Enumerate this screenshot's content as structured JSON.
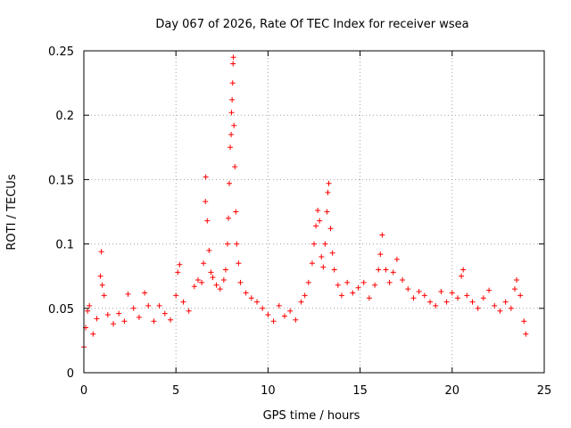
{
  "chart_data": {
    "type": "scatter",
    "title": "Day 067 of 2026, Rate Of TEC Index for receiver wsea",
    "xlabel": "GPS time / hours",
    "ylabel": "ROTI / TECUs",
    "xlim": [
      0,
      25
    ],
    "ylim": [
      0,
      0.25
    ],
    "x_ticks": [
      0,
      5,
      10,
      15,
      20,
      25
    ],
    "x_tick_labels": [
      "0",
      "5",
      "10",
      "15",
      "20",
      "25"
    ],
    "y_ticks": [
      0,
      0.05,
      0.1,
      0.15,
      0.2,
      0.25
    ],
    "y_tick_labels": [
      "0",
      "0.05",
      "0.1",
      "0.15",
      "0.2",
      "0.25"
    ],
    "grid": true,
    "marker": "+",
    "series": [
      {
        "name": "ROTI",
        "color": "#ff0000",
        "points": [
          [
            0.0,
            0.02
          ],
          [
            0.1,
            0.035
          ],
          [
            0.2,
            0.048
          ],
          [
            0.3,
            0.052
          ],
          [
            0.5,
            0.03
          ],
          [
            0.7,
            0.042
          ],
          [
            0.9,
            0.075
          ],
          [
            0.95,
            0.094
          ],
          [
            1.0,
            0.068
          ],
          [
            1.1,
            0.06
          ],
          [
            1.3,
            0.045
          ],
          [
            1.6,
            0.038
          ],
          [
            1.9,
            0.046
          ],
          [
            2.2,
            0.04
          ],
          [
            2.4,
            0.061
          ],
          [
            2.7,
            0.05
          ],
          [
            3.0,
            0.043
          ],
          [
            3.3,
            0.062
          ],
          [
            3.5,
            0.052
          ],
          [
            3.8,
            0.04
          ],
          [
            4.1,
            0.052
          ],
          [
            4.4,
            0.046
          ],
          [
            4.7,
            0.041
          ],
          [
            5.0,
            0.06
          ],
          [
            5.1,
            0.078
          ],
          [
            5.2,
            0.084
          ],
          [
            5.4,
            0.055
          ],
          [
            5.7,
            0.048
          ],
          [
            6.0,
            0.067
          ],
          [
            6.2,
            0.072
          ],
          [
            6.4,
            0.07
          ],
          [
            6.5,
            0.085
          ],
          [
            6.6,
            0.133
          ],
          [
            6.62,
            0.152
          ],
          [
            6.7,
            0.118
          ],
          [
            6.8,
            0.095
          ],
          [
            6.9,
            0.078
          ],
          [
            7.0,
            0.074
          ],
          [
            7.2,
            0.068
          ],
          [
            7.4,
            0.065
          ],
          [
            7.6,
            0.072
          ],
          [
            7.7,
            0.08
          ],
          [
            7.8,
            0.1
          ],
          [
            7.85,
            0.12
          ],
          [
            7.9,
            0.147
          ],
          [
            7.95,
            0.175
          ],
          [
            8.0,
            0.185
          ],
          [
            8.02,
            0.202
          ],
          [
            8.05,
            0.212
          ],
          [
            8.08,
            0.225
          ],
          [
            8.1,
            0.24
          ],
          [
            8.12,
            0.245
          ],
          [
            8.15,
            0.192
          ],
          [
            8.2,
            0.16
          ],
          [
            8.25,
            0.125
          ],
          [
            8.3,
            0.1
          ],
          [
            8.4,
            0.085
          ],
          [
            8.5,
            0.07
          ],
          [
            8.8,
            0.062
          ],
          [
            9.1,
            0.058
          ],
          [
            9.4,
            0.055
          ],
          [
            9.7,
            0.05
          ],
          [
            10.0,
            0.045
          ],
          [
            10.3,
            0.04
          ],
          [
            10.6,
            0.052
          ],
          [
            10.9,
            0.044
          ],
          [
            11.2,
            0.048
          ],
          [
            11.5,
            0.041
          ],
          [
            11.8,
            0.055
          ],
          [
            12.0,
            0.06
          ],
          [
            12.2,
            0.07
          ],
          [
            12.4,
            0.085
          ],
          [
            12.5,
            0.1
          ],
          [
            12.6,
            0.114
          ],
          [
            12.7,
            0.126
          ],
          [
            12.8,
            0.118
          ],
          [
            12.9,
            0.09
          ],
          [
            13.0,
            0.082
          ],
          [
            13.1,
            0.1
          ],
          [
            13.2,
            0.125
          ],
          [
            13.25,
            0.14
          ],
          [
            13.3,
            0.147
          ],
          [
            13.4,
            0.112
          ],
          [
            13.5,
            0.093
          ],
          [
            13.6,
            0.08
          ],
          [
            13.8,
            0.068
          ],
          [
            14.0,
            0.06
          ],
          [
            14.3,
            0.07
          ],
          [
            14.6,
            0.062
          ],
          [
            14.9,
            0.066
          ],
          [
            15.2,
            0.07
          ],
          [
            15.5,
            0.058
          ],
          [
            15.8,
            0.068
          ],
          [
            16.0,
            0.08
          ],
          [
            16.1,
            0.092
          ],
          [
            16.2,
            0.107
          ],
          [
            16.4,
            0.08
          ],
          [
            16.6,
            0.07
          ],
          [
            16.8,
            0.078
          ],
          [
            17.0,
            0.088
          ],
          [
            17.3,
            0.072
          ],
          [
            17.6,
            0.065
          ],
          [
            17.9,
            0.058
          ],
          [
            18.2,
            0.063
          ],
          [
            18.5,
            0.06
          ],
          [
            18.8,
            0.055
          ],
          [
            19.1,
            0.052
          ],
          [
            19.4,
            0.063
          ],
          [
            19.7,
            0.055
          ],
          [
            20.0,
            0.062
          ],
          [
            20.3,
            0.058
          ],
          [
            20.5,
            0.075
          ],
          [
            20.6,
            0.08
          ],
          [
            20.8,
            0.06
          ],
          [
            21.1,
            0.055
          ],
          [
            21.4,
            0.05
          ],
          [
            21.7,
            0.058
          ],
          [
            22.0,
            0.064
          ],
          [
            22.3,
            0.052
          ],
          [
            22.6,
            0.048
          ],
          [
            22.9,
            0.055
          ],
          [
            23.2,
            0.05
          ],
          [
            23.4,
            0.065
          ],
          [
            23.5,
            0.072
          ],
          [
            23.7,
            0.06
          ],
          [
            23.9,
            0.04
          ],
          [
            24.0,
            0.03
          ]
        ]
      }
    ]
  }
}
